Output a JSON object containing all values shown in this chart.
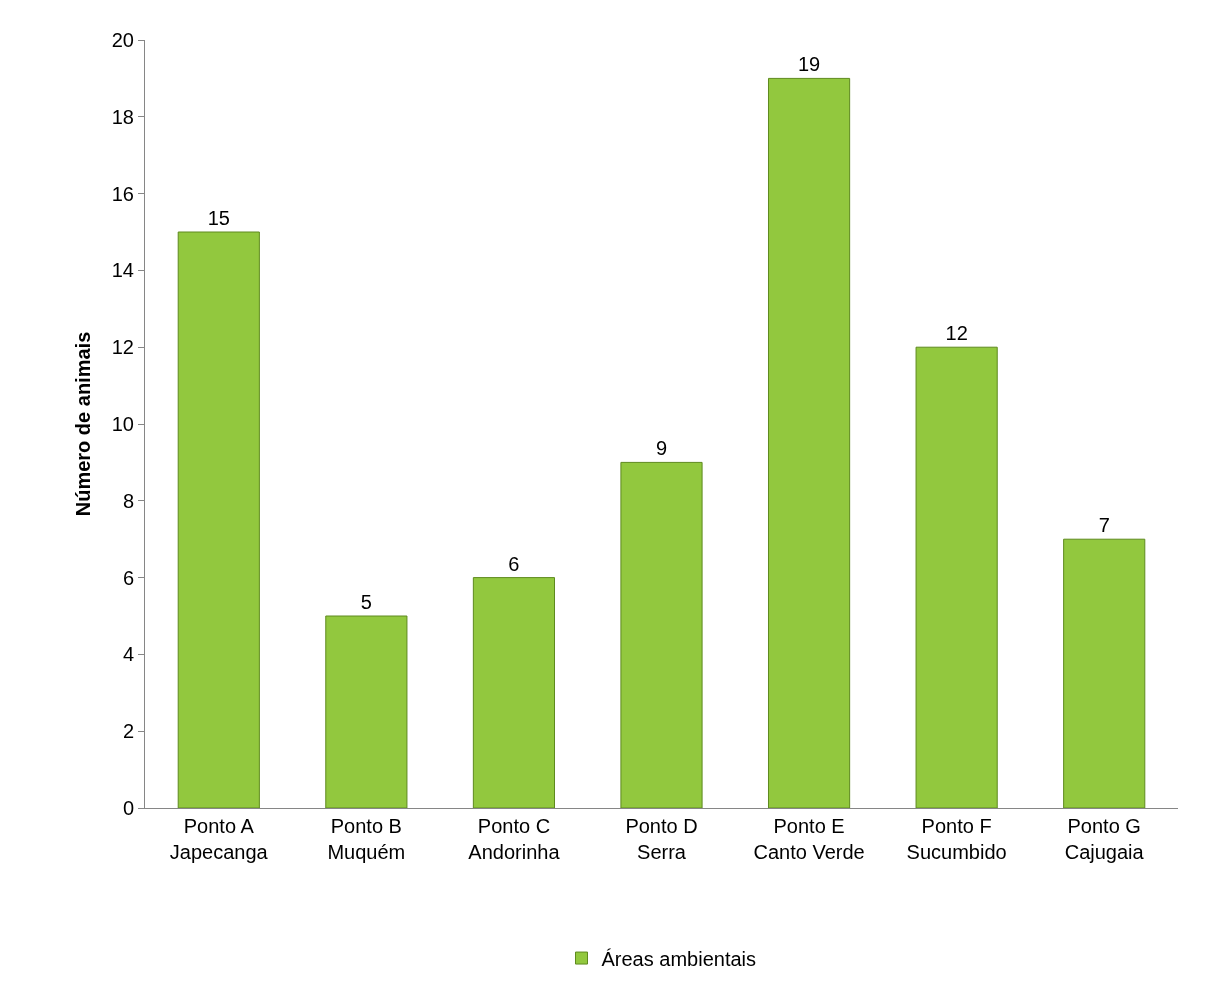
{
  "chart_data": {
    "type": "bar",
    "ylabel": "Número de animais",
    "categories": [
      "Ponto A\nJapecanga",
      "Ponto B\nMuquém",
      "Ponto C\nAndorinha",
      "Ponto D\nSerra",
      "Ponto E\nCanto Verde",
      "Ponto F\nSucumbido",
      "Ponto G\nCajugaia"
    ],
    "series": [
      {
        "name": "Áreas ambientais",
        "color": "#92c83e",
        "values": [
          15,
          5,
          6,
          9,
          19,
          12,
          7
        ]
      }
    ],
    "ylim": [
      0,
      20
    ],
    "yticks": [
      0,
      2,
      4,
      6,
      8,
      10,
      12,
      14,
      16,
      18,
      20
    ],
    "data_labels": true,
    "grid": false,
    "legend": "bottom"
  }
}
